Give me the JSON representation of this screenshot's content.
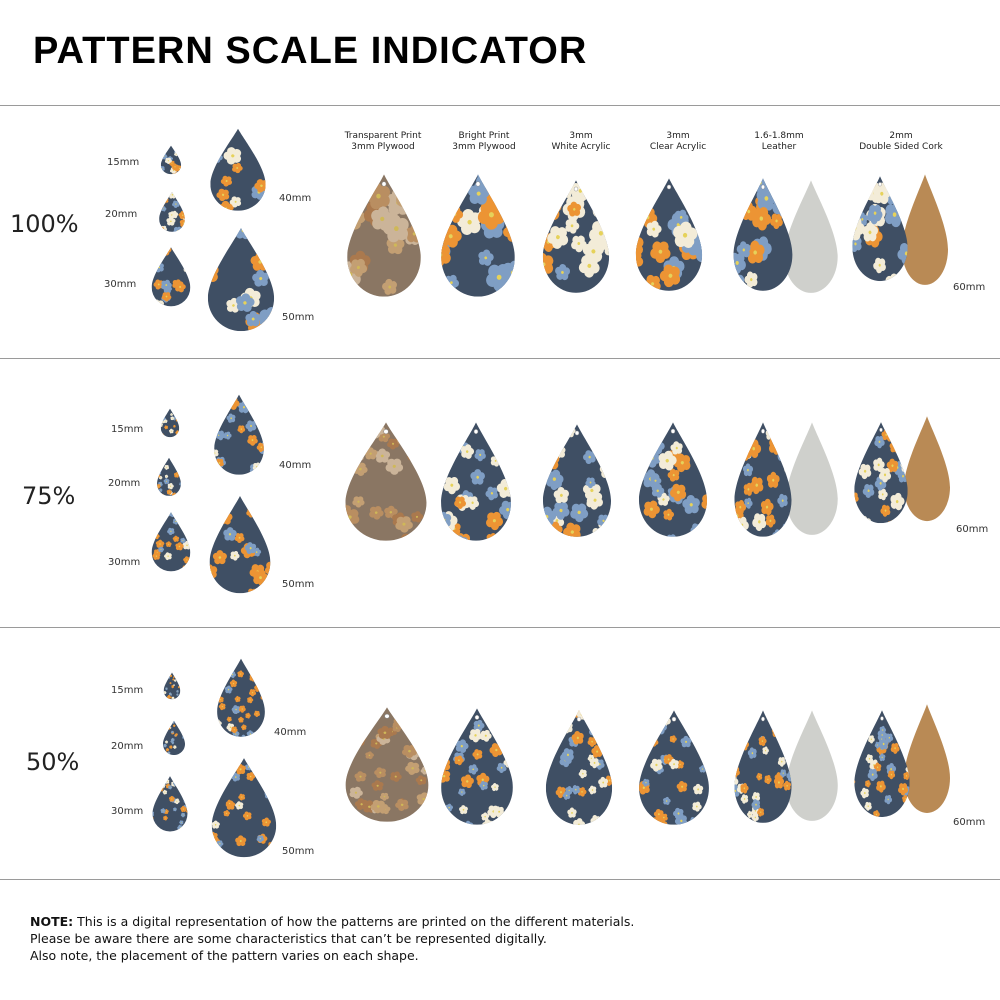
{
  "title": "PATTERN SCALE INDICATOR",
  "colors": {
    "orange": "#ec9434",
    "blue": "#7f9ec4",
    "navy": "#3f4f64",
    "cream": "#f3ecd8",
    "cork": "#b98a55",
    "suede": "#cfd0cc",
    "wood": "#8c6a52"
  },
  "sizes": [
    "15mm",
    "20mm",
    "30mm",
    "40mm",
    "50mm"
  ],
  "materials": [
    {
      "line1": "Transparent Print",
      "line2": "3mm Plywood"
    },
    {
      "line1": "Bright Print",
      "line2": "3mm Plywood"
    },
    {
      "line1": "3mm",
      "line2": "White Acrylic"
    },
    {
      "line1": "3mm",
      "line2": "Clear Acrylic"
    },
    {
      "line1": "1.6-1.8mm",
      "line2": "Leather"
    },
    {
      "line1": "2mm",
      "line2": "Double Sided Cork"
    }
  ],
  "rows": [
    {
      "scale": "100%",
      "size60": "60mm"
    },
    {
      "scale": "75%",
      "size60": "60mm"
    },
    {
      "scale": "50%",
      "size60": "60mm"
    }
  ],
  "note": {
    "bold": "NOTE:",
    "line1": " This is a digital representation of how the patterns are printed on the different materials.",
    "line2": "Please be aware there are some characteristics that can’t be represented digitally.",
    "line3": "Also note, the placement of the pattern varies on each shape."
  }
}
